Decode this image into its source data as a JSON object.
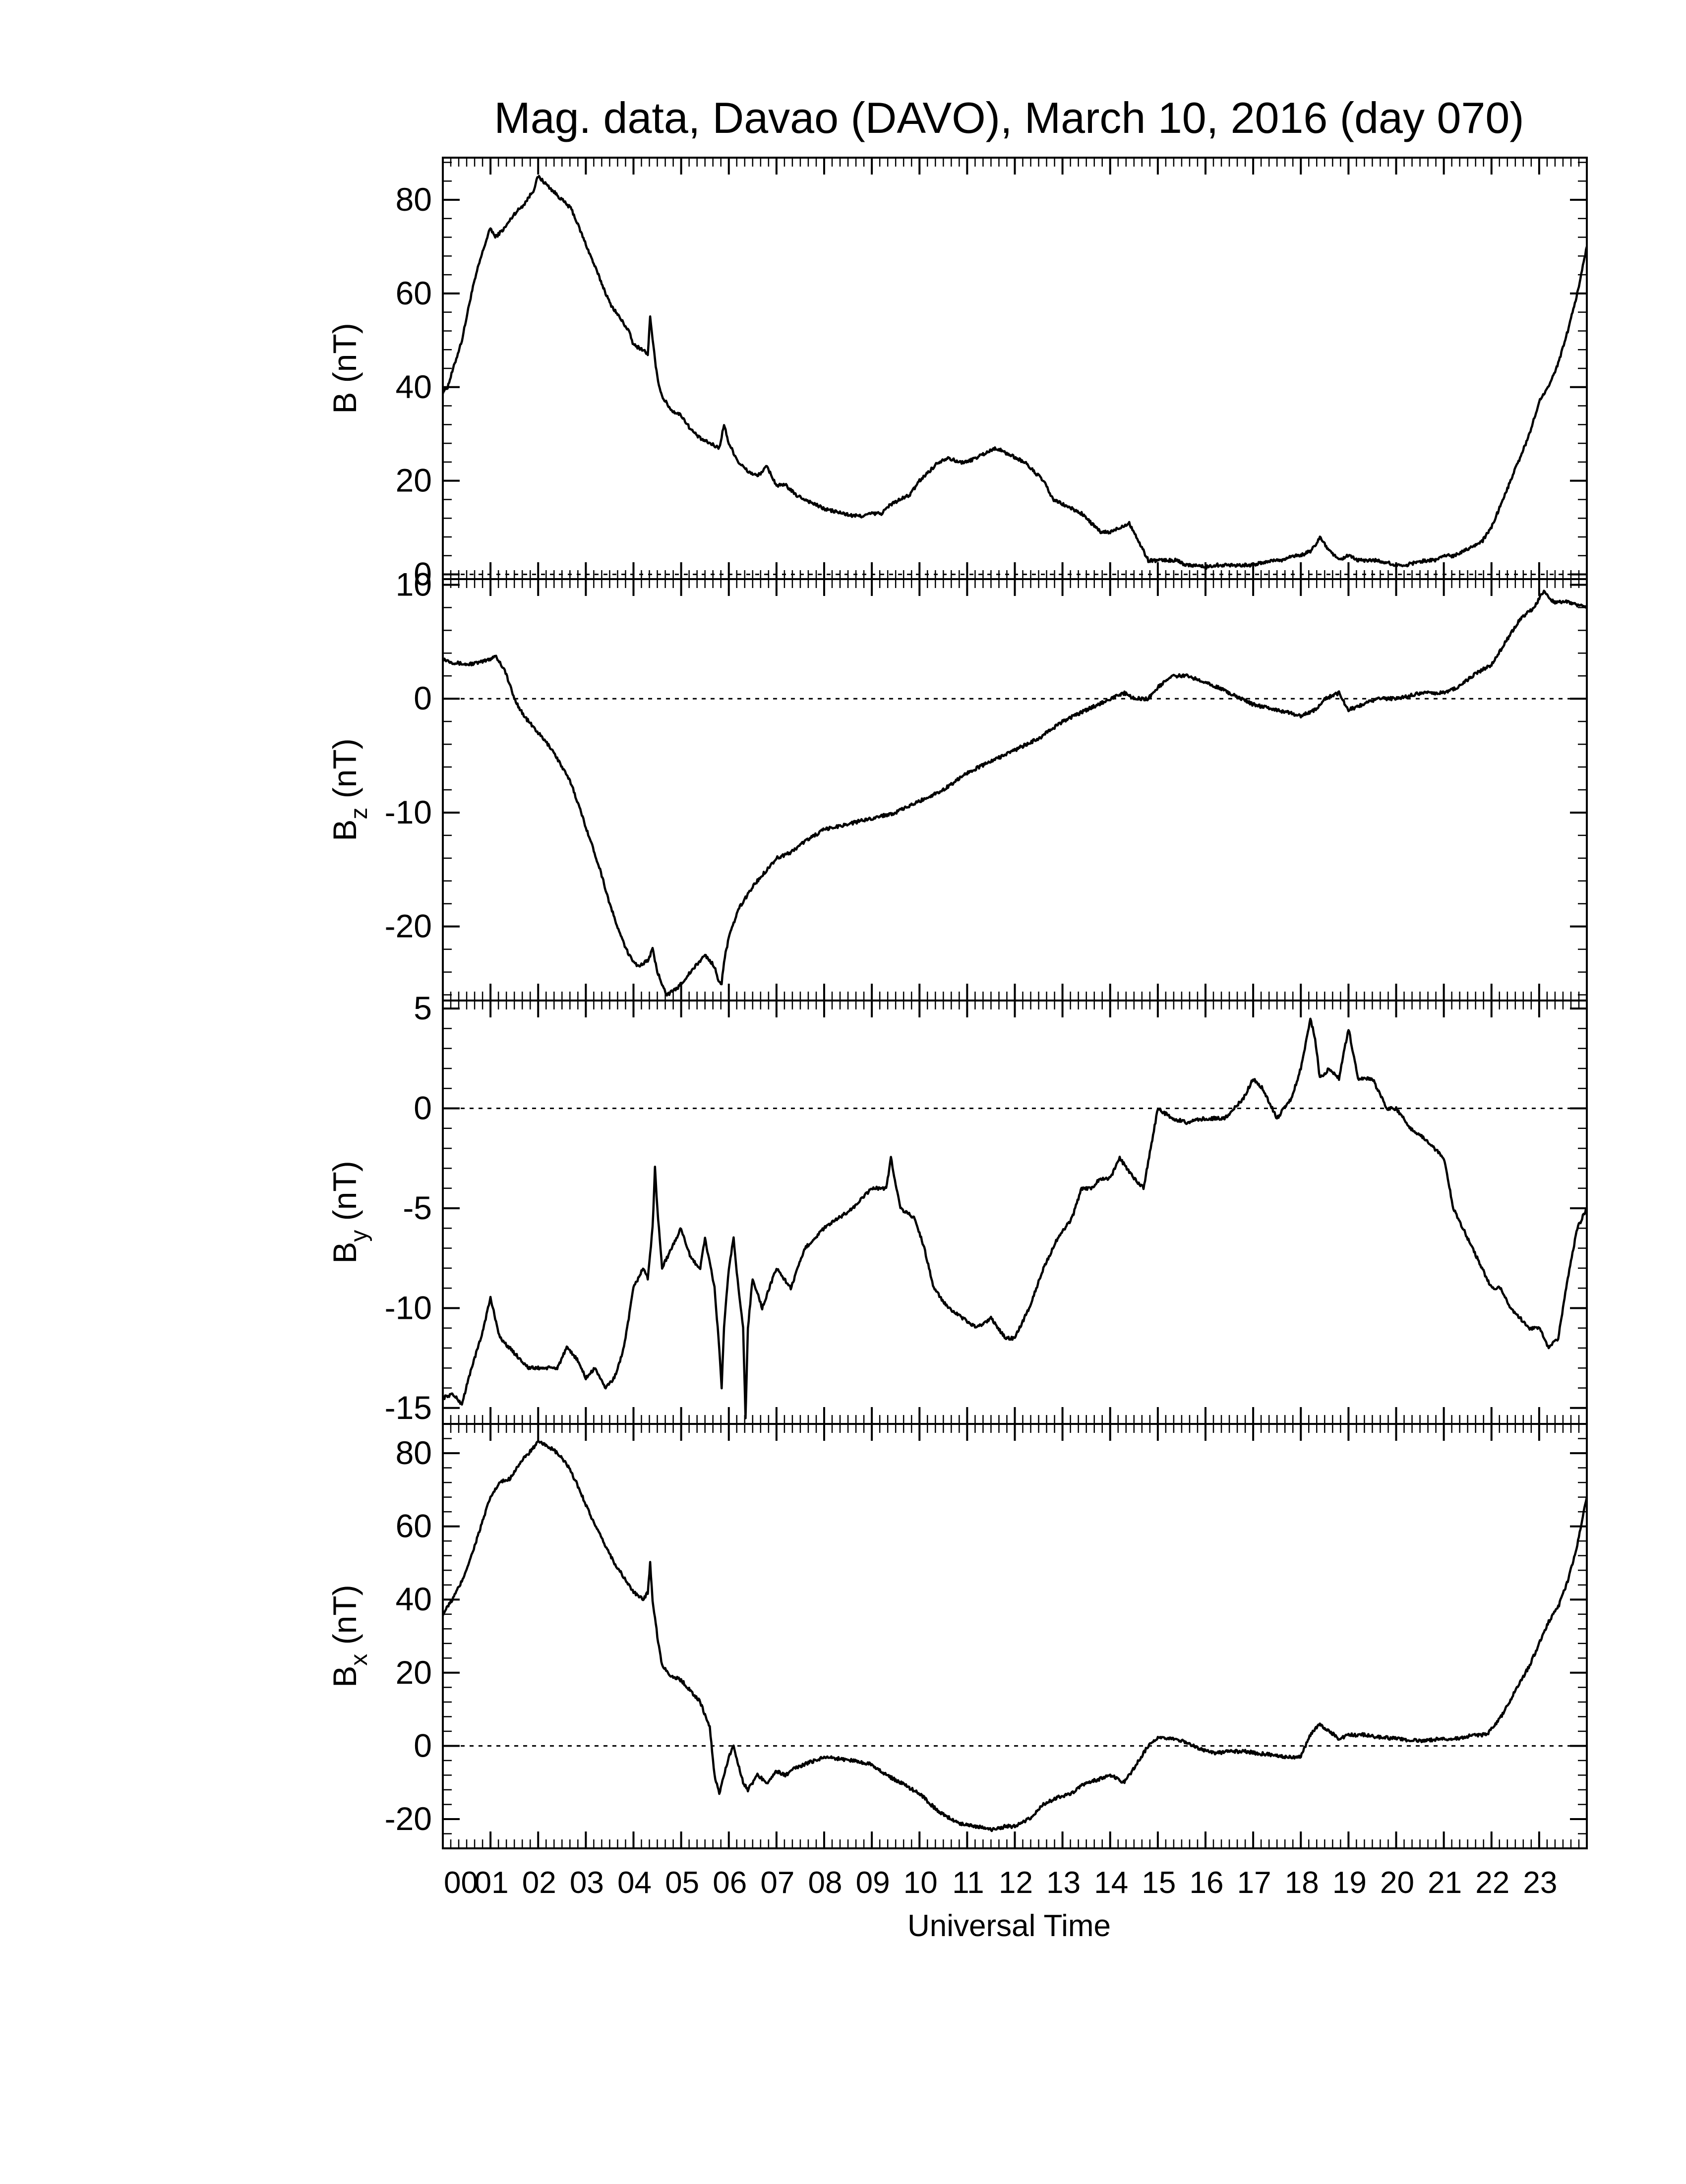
{
  "figure": {
    "title": "Mag. data, Davao (DAVO), March 10, 2016 (day 070)",
    "xlabel": "Universal Time",
    "x_tick_labels": [
      "00",
      "01",
      "02",
      "03",
      "04",
      "05",
      "06",
      "07",
      "08",
      "09",
      "10",
      "11",
      "12",
      "13",
      "14",
      "15",
      "16",
      "17",
      "18",
      "19",
      "20",
      "21",
      "22",
      "23"
    ]
  },
  "chart_data": [
    {
      "type": "line",
      "name": "B",
      "ylabel": "B (nT)",
      "ylabel_main": "B",
      "ylabel_sub": "",
      "ylabel_unit": "(nT)",
      "xlim": [
        0,
        24
      ],
      "ylim": [
        -1,
        89
      ],
      "yticks": [
        0,
        20,
        40,
        60,
        80
      ],
      "zero_line": true,
      "series": [
        {
          "x": [
            0,
            0.1,
            0.25,
            0.4,
            0.6,
            0.75,
            0.9,
            1.0,
            1.1,
            1.3,
            1.5,
            1.7,
            1.9,
            2.0,
            2.1,
            2.3,
            2.5,
            2.7,
            2.9,
            3.1,
            3.3,
            3.5,
            3.7,
            3.9,
            4.0,
            4.2,
            4.3,
            4.35,
            4.4,
            4.5,
            4.6,
            4.8,
            5.0,
            5.2,
            5.4,
            5.6,
            5.8,
            5.9,
            6.0,
            6.2,
            6.4,
            6.6,
            6.8,
            7.0,
            7.2,
            7.4,
            7.6,
            7.8,
            8.0,
            8.2,
            8.4,
            8.6,
            8.8,
            9.0,
            9.2,
            9.4,
            9.6,
            9.8,
            10.0,
            10.2,
            10.4,
            10.6,
            10.8,
            11.0,
            11.2,
            11.4,
            11.6,
            11.8,
            12.0,
            12.2,
            12.4,
            12.6,
            12.8,
            13.0,
            13.2,
            13.4,
            13.6,
            13.8,
            14.0,
            14.2,
            14.4,
            14.6,
            14.8,
            15.0,
            15.2,
            15.4,
            15.6,
            15.8,
            16.0,
            16.2,
            16.4,
            16.6,
            16.8,
            17.0,
            17.2,
            17.4,
            17.6,
            17.8,
            18.0,
            18.2,
            18.3,
            18.4,
            18.6,
            18.8,
            19.0,
            19.2,
            19.4,
            19.6,
            19.8,
            20.0,
            20.2,
            20.4,
            20.6,
            20.8,
            21.0,
            21.2,
            21.4,
            21.6,
            21.8,
            22.0,
            22.2,
            22.4,
            22.6,
            22.8,
            23.0,
            23.2,
            23.4,
            23.6,
            23.8,
            24.0
          ],
          "y": [
            39,
            40,
            45,
            50,
            60,
            66,
            71,
            74,
            72,
            74,
            77,
            79,
            82,
            85,
            84,
            82,
            80,
            78,
            73,
            68,
            63,
            58,
            55,
            52,
            49,
            48,
            47,
            55,
            50,
            42,
            38,
            35,
            34,
            31,
            29,
            28,
            27,
            32,
            28,
            24,
            22,
            21,
            23,
            19,
            19,
            17,
            16,
            15,
            14,
            13.5,
            13,
            12.5,
            12.5,
            13,
            13,
            15,
            16,
            17,
            20,
            22,
            24,
            25,
            24,
            24,
            25,
            26,
            27,
            26,
            25,
            24,
            22,
            20,
            16,
            15,
            14,
            13,
            11,
            9,
            9,
            10,
            11,
            7,
            3,
            3,
            3,
            3,
            2,
            2,
            1.5,
            2,
            2,
            2,
            2,
            2,
            2.5,
            3,
            3,
            4,
            4,
            5,
            6,
            8,
            5,
            3,
            4,
            3,
            3,
            3,
            2.5,
            2,
            2,
            2.5,
            3,
            3,
            4,
            4,
            5,
            6,
            7,
            10,
            15,
            20,
            25,
            30,
            37,
            40,
            45,
            52,
            60,
            70
          ]
        }
      ]
    },
    {
      "type": "line",
      "name": "Bz",
      "ylabel": "Bz (nT)",
      "ylabel_main": "B",
      "ylabel_sub": "z",
      "ylabel_unit": "(nT)",
      "xlim": [
        0,
        24
      ],
      "ylim": [
        -26.5,
        10.5
      ],
      "yticks": [
        -20,
        -10,
        0,
        10
      ],
      "zero_line": true,
      "series": [
        {
          "x": [
            0,
            0.2,
            0.5,
            0.8,
            1.0,
            1.1,
            1.3,
            1.5,
            1.7,
            1.9,
            2.1,
            2.3,
            2.5,
            2.7,
            2.9,
            3.1,
            3.3,
            3.5,
            3.7,
            3.9,
            4.1,
            4.3,
            4.4,
            4.5,
            4.7,
            4.9,
            5.1,
            5.3,
            5.5,
            5.7,
            5.8,
            5.85,
            5.9,
            6.0,
            6.2,
            6.5,
            6.8,
            7.0,
            7.3,
            7.6,
            8.0,
            8.5,
            9.0,
            9.5,
            10.0,
            10.5,
            11.0,
            11.5,
            12.0,
            12.5,
            13.0,
            13.5,
            14.0,
            14.3,
            14.5,
            14.8,
            15.0,
            15.3,
            15.6,
            16.0,
            16.5,
            17.0,
            17.5,
            18.0,
            18.3,
            18.5,
            18.8,
            19.0,
            19.3,
            19.6,
            20.0,
            20.5,
            21.0,
            21.3,
            21.6,
            22.0,
            22.3,
            22.6,
            22.9,
            23.1,
            23.3,
            23.6,
            24.0
          ],
          "y": [
            3.5,
            3.2,
            3,
            3.2,
            3.5,
            3.8,
            2.5,
            0,
            -1.5,
            -2.5,
            -3.5,
            -4.5,
            -6,
            -7.5,
            -10,
            -12.5,
            -15,
            -18,
            -20.5,
            -22.5,
            -23.5,
            -23,
            -22,
            -24,
            -26,
            -25.5,
            -24.5,
            -23.5,
            -22.5,
            -23.5,
            -25,
            -25,
            -23,
            -21,
            -18.5,
            -16.5,
            -15,
            -14,
            -13.5,
            -12.5,
            -11.5,
            -11,
            -10.5,
            -10,
            -9,
            -8,
            -6.5,
            -5.5,
            -4.5,
            -3.5,
            -2,
            -1,
            0,
            0.5,
            0,
            0,
            1,
            2,
            2,
            1.5,
            0.5,
            -0.5,
            -1,
            -1.5,
            -1,
            0,
            0.5,
            -1,
            -0.5,
            0,
            0,
            0.5,
            0.5,
            1,
            2,
            3,
            5,
            7,
            8,
            9.5,
            8.5,
            8.5,
            8
          ]
        }
      ]
    },
    {
      "type": "line",
      "name": "By",
      "ylabel": "By (nT)",
      "ylabel_main": "B",
      "ylabel_sub": "y",
      "ylabel_unit": "(nT)",
      "xlim": [
        0,
        24
      ],
      "ylim": [
        -15.8,
        5.4
      ],
      "yticks": [
        -15,
        -10,
        -5,
        0,
        5
      ],
      "zero_line": true,
      "series": [
        {
          "x": [
            0,
            0.2,
            0.4,
            0.6,
            0.8,
            1.0,
            1.2,
            1.4,
            1.6,
            1.8,
            2.0,
            2.2,
            2.4,
            2.6,
            2.8,
            3.0,
            3.2,
            3.4,
            3.6,
            3.8,
            4.0,
            4.2,
            4.3,
            4.4,
            4.45,
            4.5,
            4.6,
            4.8,
            5.0,
            5.2,
            5.4,
            5.5,
            5.7,
            5.8,
            5.85,
            5.9,
            6.0,
            6.1,
            6.2,
            6.3,
            6.35,
            6.4,
            6.5,
            6.7,
            7.0,
            7.3,
            7.6,
            8.0,
            8.3,
            8.6,
            9.0,
            9.3,
            9.4,
            9.6,
            9.9,
            10.1,
            10.3,
            10.6,
            10.9,
            11.2,
            11.5,
            11.8,
            12.0,
            12.3,
            12.6,
            12.9,
            13.2,
            13.4,
            13.6,
            13.8,
            14.0,
            14.2,
            14.5,
            14.7,
            15.0,
            15.3,
            15.6,
            16.0,
            16.4,
            16.8,
            17.0,
            17.2,
            17.5,
            17.8,
            18.0,
            18.2,
            18.3,
            18.4,
            18.6,
            18.8,
            19.0,
            19.2,
            19.5,
            19.8,
            20.0,
            20.3,
            20.6,
            21.0,
            21.2,
            21.5,
            21.8,
            22.0,
            22.2,
            22.4,
            22.6,
            22.8,
            23.0,
            23.2,
            23.4,
            23.6,
            23.8,
            24.0
          ],
          "y": [
            -14.5,
            -14.3,
            -14.8,
            -13,
            -11.5,
            -9.5,
            -11.5,
            -12,
            -12.5,
            -13,
            -13,
            -13,
            -13,
            -12,
            -12.5,
            -13.5,
            -13,
            -14,
            -13.5,
            -12,
            -9,
            -8,
            -8.5,
            -6,
            -3,
            -5,
            -8,
            -7,
            -6,
            -7.5,
            -8,
            -6.5,
            -9,
            -12,
            -14,
            -11,
            -8,
            -6.5,
            -9,
            -11,
            -15.5,
            -11,
            -8.5,
            -10,
            -8,
            -9,
            -7,
            -6,
            -5.5,
            -5,
            -4,
            -4,
            -2.5,
            -5,
            -5.5,
            -7,
            -9,
            -10,
            -10.5,
            -11,
            -10.5,
            -11.5,
            -11.5,
            -10,
            -8,
            -6.5,
            -5.5,
            -4,
            -4,
            -3.5,
            -3.5,
            -2.5,
            -3.5,
            -4,
            0,
            -0.5,
            -0.7,
            -0.5,
            -0.5,
            0.5,
            1.5,
            1,
            -0.5,
            0.5,
            2,
            4.5,
            3.5,
            1.5,
            2,
            1.5,
            4,
            1.5,
            1.5,
            0,
            0,
            -1,
            -1.5,
            -2.5,
            -5,
            -6.5,
            -8,
            -9,
            -9,
            -10,
            -10.5,
            -11,
            -11,
            -12,
            -11.5,
            -8.5,
            -6,
            -5
          ]
        }
      ]
    },
    {
      "type": "line",
      "name": "Bx",
      "ylabel": "Bx (nT)",
      "ylabel_main": "B",
      "ylabel_sub": "x",
      "ylabel_unit": "(nT)",
      "xlim": [
        0,
        24
      ],
      "ylim": [
        -28,
        88
      ],
      "yticks": [
        -20,
        0,
        20,
        40,
        60,
        80
      ],
      "zero_line": true,
      "series": [
        {
          "x": [
            0,
            0.2,
            0.4,
            0.6,
            0.8,
            1.0,
            1.2,
            1.4,
            1.6,
            1.8,
            2.0,
            2.2,
            2.4,
            2.6,
            2.8,
            3.0,
            3.2,
            3.4,
            3.6,
            3.8,
            4.0,
            4.2,
            4.3,
            4.35,
            4.4,
            4.5,
            4.6,
            4.8,
            5.0,
            5.2,
            5.4,
            5.6,
            5.7,
            5.8,
            5.9,
            6.0,
            6.1,
            6.2,
            6.3,
            6.4,
            6.6,
            6.8,
            7.0,
            7.2,
            7.4,
            7.6,
            7.8,
            8.0,
            8.3,
            8.6,
            9.0,
            9.3,
            9.6,
            10.0,
            10.4,
            10.8,
            11.2,
            11.5,
            11.8,
            12.0,
            12.3,
            12.6,
            12.9,
            13.2,
            13.5,
            13.8,
            14.0,
            14.3,
            14.6,
            14.8,
            15.0,
            15.3,
            15.6,
            15.9,
            16.2,
            16.5,
            16.8,
            17.1,
            17.4,
            17.7,
            18.0,
            18.2,
            18.4,
            18.6,
            18.8,
            19.0,
            19.3,
            19.6,
            20.0,
            20.3,
            20.6,
            21.0,
            21.3,
            21.6,
            21.9,
            22.2,
            22.5,
            22.8,
            23.0,
            23.2,
            23.4,
            23.6,
            23.8,
            24.0
          ],
          "y": [
            36,
            40,
            45,
            52,
            60,
            68,
            72,
            73,
            77,
            80,
            83,
            82,
            80,
            77,
            72,
            66,
            60,
            55,
            50,
            46,
            42,
            40,
            42,
            50,
            40,
            30,
            22,
            19,
            18,
            15,
            12,
            5,
            -8,
            -13,
            -8,
            -3,
            0,
            -5,
            -10,
            -12,
            -8,
            -10,
            -7,
            -8,
            -6,
            -5,
            -4,
            -3,
            -3.5,
            -4,
            -5,
            -8,
            -10,
            -13,
            -18,
            -21,
            -22,
            -23,
            -22,
            -22,
            -20,
            -16,
            -14,
            -13,
            -10,
            -9,
            -8,
            -10,
            -4,
            0,
            2,
            2,
            1,
            -1,
            -2,
            -1.5,
            -1.5,
            -2,
            -2.5,
            -3,
            -3,
            3,
            6,
            4,
            2,
            3,
            3,
            2.5,
            2,
            1.5,
            1.5,
            2,
            2,
            3,
            3,
            8,
            15,
            22,
            28,
            34,
            38,
            45,
            55,
            68
          ]
        }
      ]
    }
  ]
}
